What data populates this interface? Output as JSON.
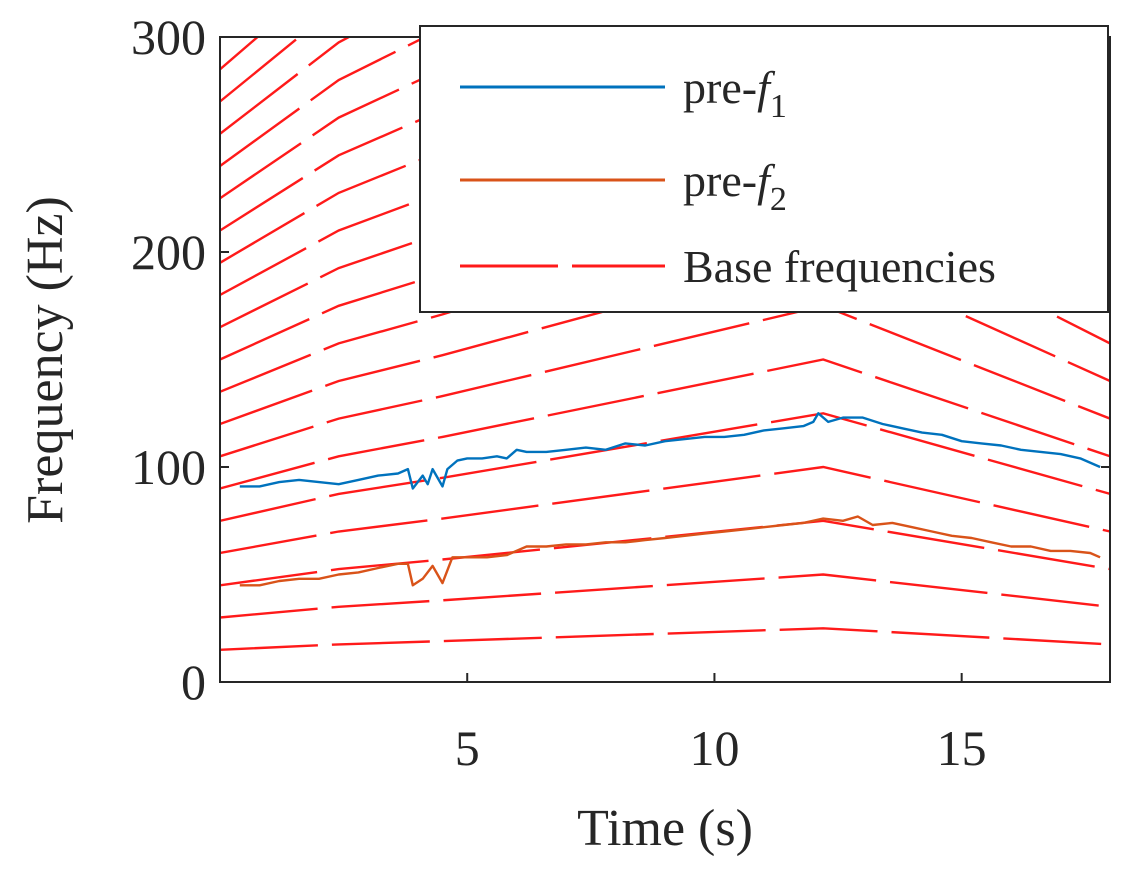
{
  "chart_data": {
    "type": "line",
    "title": "",
    "xlabel": "Time (s)",
    "ylabel": "Frequency (Hz)",
    "xlim": [
      0,
      18
    ],
    "ylim": [
      0,
      300
    ],
    "xticks": [
      5,
      10,
      15
    ],
    "yticks": [
      0,
      100,
      200,
      300
    ],
    "grid": false,
    "legend_position": "top-right",
    "colors": {
      "pre_f1": "#0072BD",
      "pre_f2": "#D95319",
      "base": "#FF1A1A",
      "axis": "#262626"
    },
    "series": [
      {
        "name": "pre-f1",
        "label_prefix": "pre-",
        "label_symbol": "f",
        "label_subscript": "1",
        "color": "#0072BD",
        "x": [
          0.4,
          0.8,
          1.2,
          1.6,
          2.0,
          2.4,
          2.8,
          3.2,
          3.6,
          3.8,
          3.9,
          4.1,
          4.2,
          4.3,
          4.5,
          4.6,
          4.8,
          5.0,
          5.3,
          5.6,
          5.8,
          6.0,
          6.2,
          6.6,
          7.0,
          7.4,
          7.8,
          8.2,
          8.6,
          9.0,
          9.4,
          9.8,
          10.2,
          10.6,
          11.0,
          11.4,
          11.8,
          12.0,
          12.1,
          12.3,
          12.6,
          13.0,
          13.4,
          13.8,
          14.2,
          14.6,
          15.0,
          15.4,
          15.8,
          16.2,
          16.6,
          17.0,
          17.4,
          17.8
        ],
        "y": [
          91,
          91,
          93,
          94,
          93,
          92,
          94,
          96,
          97,
          99,
          90,
          96,
          92,
          99,
          91,
          99,
          103,
          104,
          104,
          105,
          104,
          108,
          107,
          107,
          108,
          109,
          108,
          111,
          110,
          112,
          113,
          114,
          114,
          115,
          117,
          118,
          119,
          121,
          125,
          121,
          123,
          123,
          120,
          118,
          116,
          115,
          112,
          111,
          110,
          108,
          107,
          106,
          104,
          100
        ]
      },
      {
        "name": "pre-f2",
        "label_prefix": "pre-",
        "label_symbol": "f",
        "label_subscript": "2",
        "color": "#D95319",
        "x": [
          0.4,
          0.8,
          1.2,
          1.6,
          2.0,
          2.4,
          2.8,
          3.2,
          3.6,
          3.8,
          3.9,
          4.1,
          4.3,
          4.5,
          4.7,
          5.0,
          5.4,
          5.8,
          6.2,
          6.6,
          7.0,
          7.4,
          7.8,
          8.2,
          8.6,
          9.0,
          9.4,
          9.8,
          10.2,
          10.6,
          11.0,
          11.4,
          11.8,
          12.2,
          12.6,
          12.9,
          13.2,
          13.6,
          14.0,
          14.4,
          14.8,
          15.2,
          15.6,
          16.0,
          16.4,
          16.8,
          17.2,
          17.6,
          17.8
        ],
        "y": [
          45,
          45,
          47,
          48,
          48,
          50,
          51,
          53,
          55,
          55,
          45,
          48,
          54,
          46,
          58,
          58,
          58,
          59,
          63,
          63,
          64,
          64,
          65,
          65,
          66,
          67,
          68,
          69,
          70,
          71,
          72,
          73,
          74,
          76,
          75,
          77,
          73,
          74,
          72,
          70,
          68,
          67,
          65,
          63,
          63,
          61,
          61,
          60,
          58
        ]
      },
      {
        "name": "Base frequencies",
        "color": "#FF1A1A",
        "style": "dashed",
        "x": [
          0,
          2.4,
          4.5,
          12.2,
          18
        ],
        "fundamental": [
          15,
          17.5,
          19,
          25,
          17.5
        ],
        "harmonics": [
          1,
          2,
          3,
          4,
          5,
          6,
          7,
          8,
          9,
          10,
          11,
          12,
          13,
          14,
          15,
          16,
          17,
          18,
          19,
          20
        ]
      }
    ]
  }
}
